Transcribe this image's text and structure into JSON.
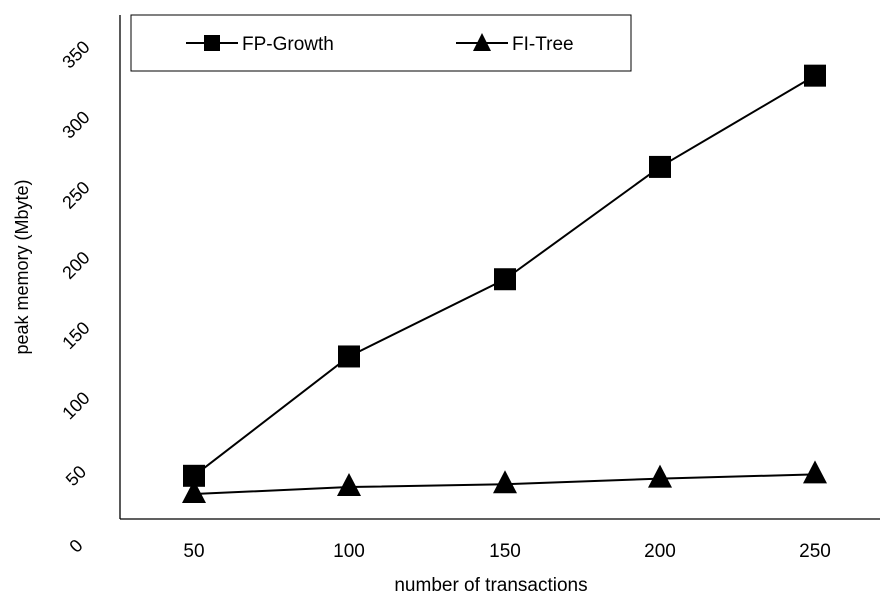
{
  "chart_data": {
    "type": "line",
    "title": "",
    "xlabel": "number of transactions",
    "ylabel": "peak memory (Mbyte)",
    "categories": [
      "50",
      "100",
      "150",
      "200",
      "250"
    ],
    "yticks": [
      "0",
      "50",
      "100",
      "150",
      "200",
      "250",
      "300",
      "350"
    ],
    "ylim": [
      0,
      350
    ],
    "grid": false,
    "legend": "top-left",
    "series": [
      {
        "name": "FP-Growth",
        "marker": "square",
        "color": "#000000",
        "values": [
          50,
          135,
          190,
          270,
          335
        ]
      },
      {
        "name": "FI-Tree",
        "marker": "triangle",
        "color": "#000000",
        "values": [
          37,
          42,
          44,
          48,
          51
        ]
      }
    ]
  }
}
